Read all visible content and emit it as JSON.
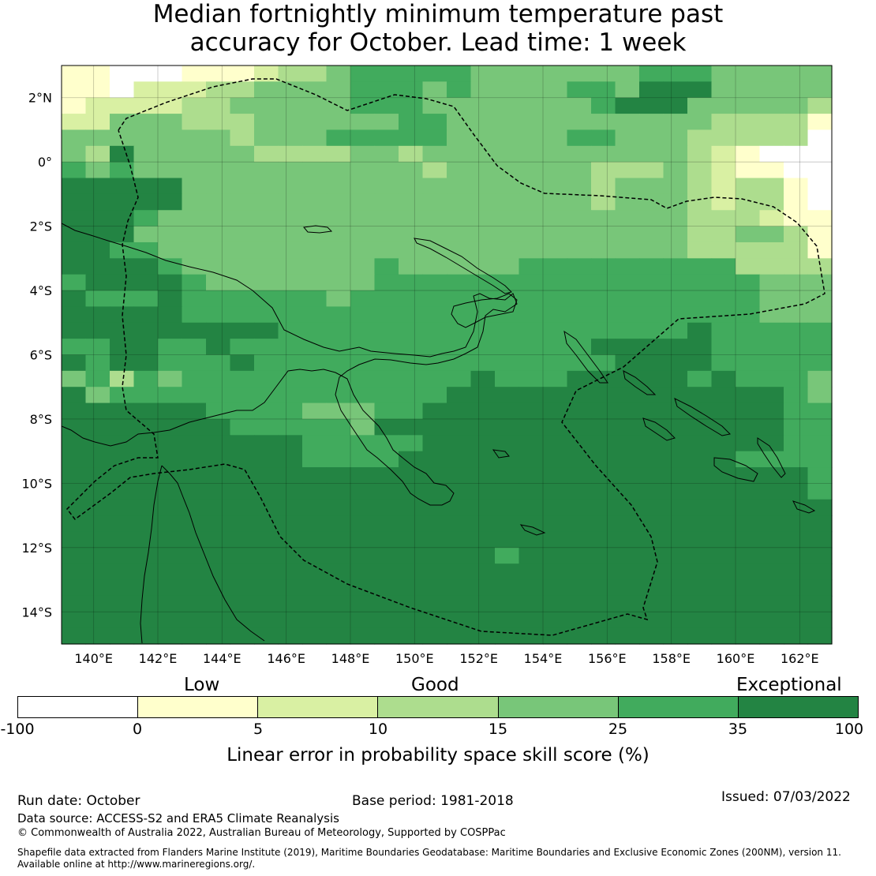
{
  "title": {
    "line1": "Median fortnightly minimum temperature past",
    "line2": "accuracy for October. Lead time: 1 week"
  },
  "map": {
    "lon_labels": [
      "140°E",
      "142°E",
      "144°E",
      "146°E",
      "148°E",
      "150°E",
      "152°E",
      "154°E",
      "156°E",
      "158°E",
      "160°E",
      "162°E"
    ],
    "lat_labels": [
      "2°N",
      "0°",
      "2°S",
      "4°S",
      "6°S",
      "8°S",
      "10°S",
      "12°S",
      "14°S"
    ],
    "colors": {
      "c0": "#ffffff",
      "c1": "#ffffcc",
      "c2": "#d9f0a3",
      "c3": "#addd8e",
      "c4": "#78c679",
      "c5": "#41ab5d",
      "c6": "#238443"
    },
    "grid_rows": [
      "11000111233455555444444455544444",
      "11022233444455545444455466644444",
      "12222334444455544444445666444443",
      "22444333444444554444444444433331",
      "44444443444555554444455444333330",
      "43644444333344344444444444321000",
      "54544444444444434444443334321100",
      "66666444444444444444443444323310",
      "66666444444444444444443444323310",
      "66654444444444444444444444333211",
      "66644444444444444444444444334431",
      "66554444444444444444444444333331",
      "66665444444445444445555555553333",
      "56666544444445555555555555555444",
      "65556555555455555555555555555444",
      "66666555555555555555555555555444",
      "66666666655555555555555555655555",
      "55665565555555555555556666655555",
      "65665556555555555555555666655555",
      "45354555555555555655566666565554",
      "64555555555555556666666666666654",
      "66666655554445566666666666666655",
      "66666665555546666666666666666655",
      "66666666665555566666666666666655",
      "66666666665555666666666666665555",
      "66666666666666666666666666666665",
      "66666666666666666666666666666665",
      "66666666666666666666666666666666",
      "66666666666666666666666666666666",
      "66666666666666666666666666666666",
      "66666666666666666656666666666666",
      "66666666666666666666666666666666",
      "66666666666666666666666666666666",
      "66666666666666666666666666666666",
      "66666666666666666666666666666666",
      "66666666666666666666666666666666"
    ]
  },
  "colorbar": {
    "categories": [
      "Low",
      "Good",
      "Exceptional"
    ],
    "ticks": [
      "-100",
      "0",
      "5",
      "10",
      "15",
      "25",
      "35",
      "100"
    ],
    "colors": [
      "#ffffff",
      "#ffffcc",
      "#d9f0a3",
      "#addd8e",
      "#78c679",
      "#41ab5d",
      "#238443"
    ],
    "label": "Linear error in probability space skill score (%)"
  },
  "footer": {
    "run_date": "Run date: October",
    "base_period": "Base period: 1981-2018",
    "issued": "Issued: 07/03/2022",
    "data_source": "Data source: ACCESS-S2 and ERA5 Climate Reanalysis",
    "copyright": "© Commonwealth of Australia 2022, Australian Bureau of Meteorology, Supported by COSPPac",
    "shapefile_line1": "Shapefile data extracted from Flanders Marine Institute (2019), Maritime Boundaries Geodatabase: Maritime Boundaries and Exclusive Economic Zones (200NM), version 11.",
    "shapefile_line2": "Available online at http://www.marineregions.org/."
  }
}
